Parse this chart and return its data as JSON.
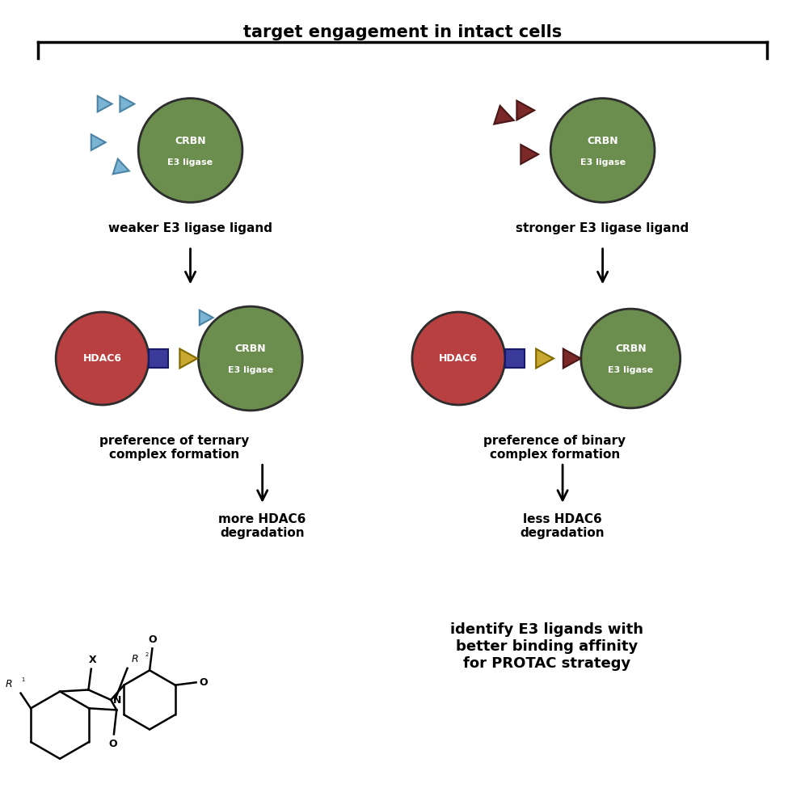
{
  "title": "target engagement in intact cells",
  "crbn_color": "#6b8e4e",
  "crbn_edge_color": "#2d2d2d",
  "hdac6_color": "#b94040",
  "hdac6_edge_color": "#2d2d2d",
  "weak_arrow_color": "#7ab3d4",
  "weak_arrow_edge": "#4a83a4",
  "strong_arrow_color": "#7a2828",
  "strong_arrow_edge": "#4a1818",
  "linker_color_gold": "#c8a830",
  "linker_edge": "#806800",
  "square_color": "#3a3a9a",
  "square_edge": "#1a1a6a",
  "text_color": "#000000",
  "background": "#ffffff",
  "left_label1": "weaker E3 ligase ligand",
  "left_label2": "preference of ternary\ncomplex formation",
  "left_label3": "more HDAC6\ndegradation",
  "right_label1": "stronger E3 ligase ligand",
  "right_label2": "preference of binary\ncomplex formation",
  "right_label3": "less HDAC6\ndegradation",
  "bottom_text": "identify E3 ligands with\nbetter binding affinity\nfor PROTAC strategy"
}
